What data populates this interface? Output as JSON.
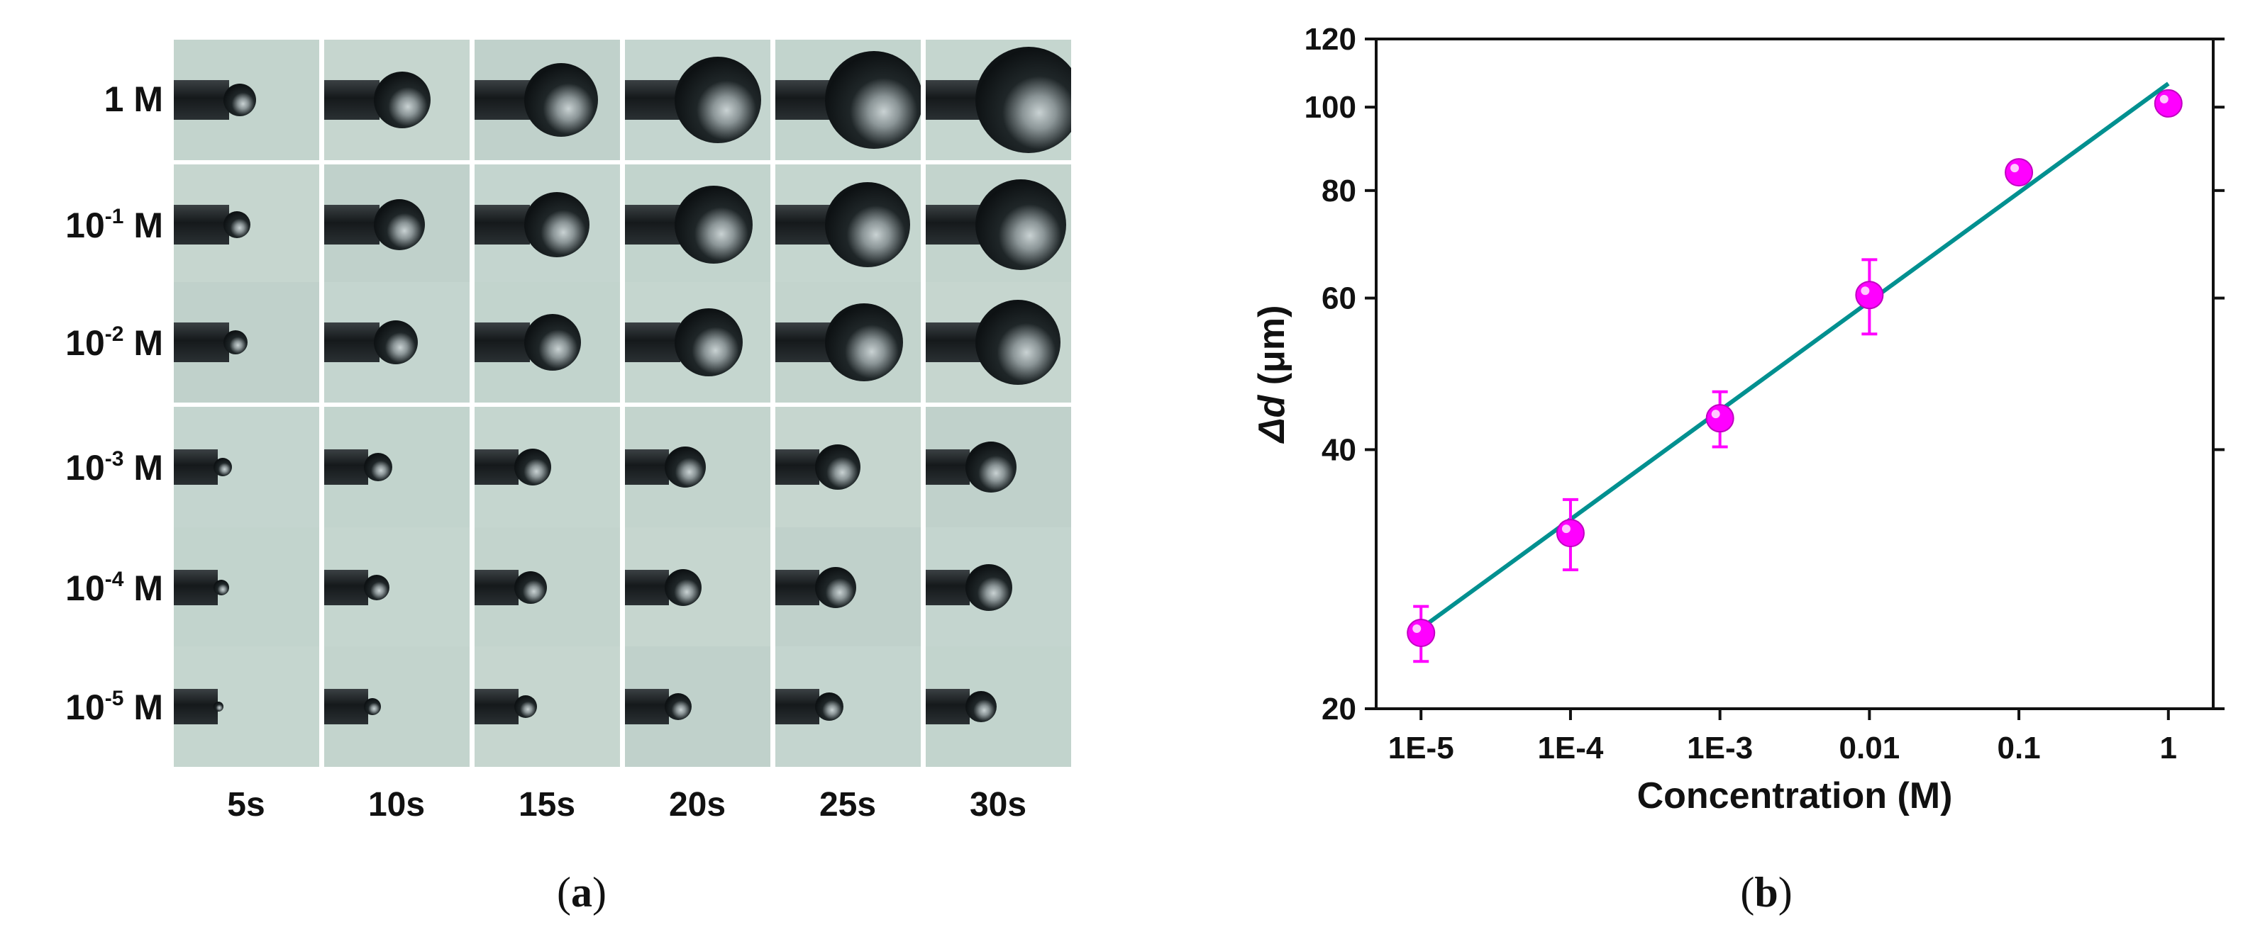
{
  "panel_a": {
    "row_labels": [
      {
        "base": "1 M",
        "exp": "",
        "unit": ""
      },
      {
        "base": "10",
        "exp": "-1",
        "unit": " M"
      },
      {
        "base": "10",
        "exp": "-2",
        "unit": " M"
      },
      {
        "base": "10",
        "exp": "-3",
        "unit": " M"
      },
      {
        "base": "10",
        "exp": "-4",
        "unit": " M"
      },
      {
        "base": "10",
        "exp": "-5",
        "unit": " M"
      }
    ],
    "time_labels": [
      "5s",
      "10s",
      "15s",
      "20s",
      "25s",
      "30s"
    ],
    "caption_open": "(",
    "caption_letter": "a",
    "caption_close": ")"
  },
  "panel_b": {
    "caption_open": "(",
    "caption_letter": "b",
    "caption_close": ")"
  },
  "chart_data": {
    "type": "scatter",
    "title": "",
    "xlabel": "Concentration (M)",
    "ylabel_symbol": "Δd",
    "ylabel_unit": " (μm)",
    "x_scale": "log",
    "y_scale": "log",
    "x_tick_labels": [
      "1E-5",
      "1E-4",
      "1E-3",
      "0.01",
      "0.1",
      "1"
    ],
    "x": [
      1e-05,
      0.0001,
      0.001,
      0.01,
      0.1,
      1
    ],
    "y_ticks": [
      20,
      40,
      60,
      80,
      100,
      120
    ],
    "y_tick_labels": [
      "20",
      "40",
      "60",
      "80",
      "100",
      "120"
    ],
    "ylim": [
      20,
      120
    ],
    "series": [
      {
        "values": [
          24.5,
          32,
          43.5,
          60.5,
          84,
          101
        ],
        "error": [
          1.8,
          3.0,
          3.2,
          6.0,
          0.8,
          2.0
        ],
        "marker_color": "#ff00ff"
      }
    ],
    "fit_line": {
      "x": [
        1e-05,
        1
      ],
      "y": [
        24.8,
        106.5
      ],
      "color": "#009090"
    },
    "grid": false,
    "legend": "none"
  }
}
